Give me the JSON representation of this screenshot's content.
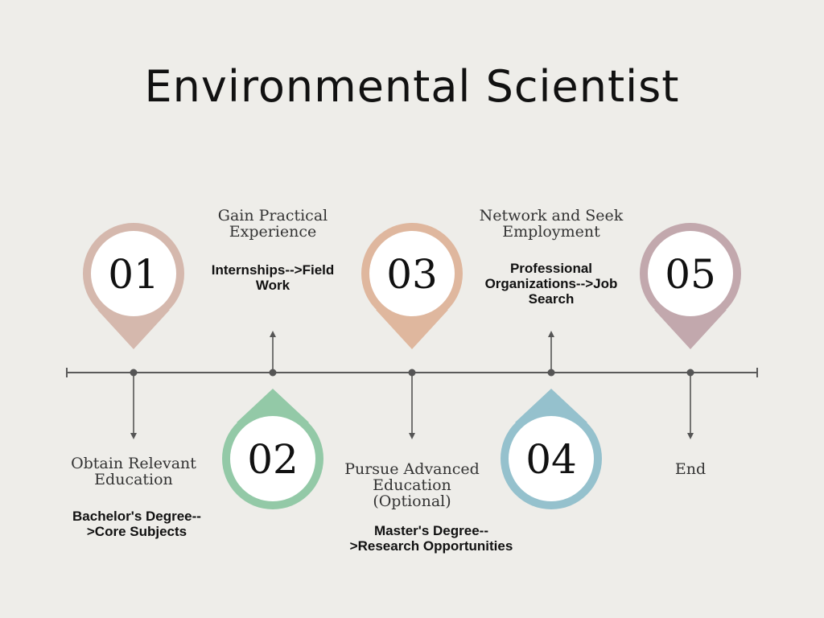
{
  "title": "Environmental Scientist",
  "steps": [
    {
      "number": "01",
      "color": "#d5b8ad",
      "title": "Obtain Relevant\nEducation",
      "description": "Bachelor's Degree--\n>Core Subjects"
    },
    {
      "number": "02",
      "color": "#93c9a7",
      "title": "Gain Practical\nExperience",
      "description": "Internships-->Field\nWork"
    },
    {
      "number": "03",
      "color": "#dfb79e",
      "title": "Pursue Advanced\nEducation\n(Optional)",
      "description": "Master's Degree--\n>Research Opportunities"
    },
    {
      "number": "04",
      "color": "#95c1cd",
      "title": "Network and Seek\nEmployment",
      "description": "Professional\nOrganizations-->Job\nSearch"
    },
    {
      "number": "05",
      "color": "#c2a8ad",
      "title": "End",
      "description": ""
    }
  ]
}
